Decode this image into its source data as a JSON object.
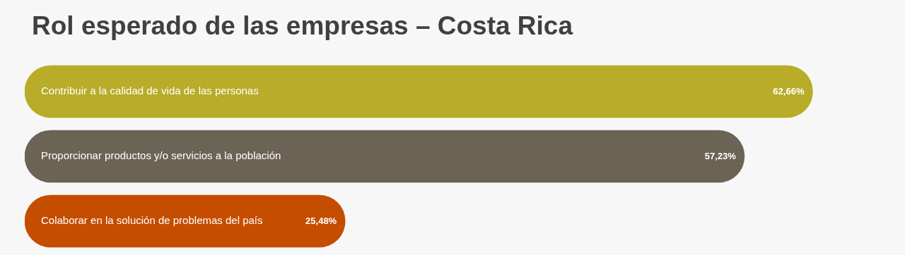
{
  "chart_data": {
    "type": "bar",
    "orientation": "horizontal",
    "title": "Rol esperado de las empresas – Costa Rica",
    "categories": [
      "Contribuir a la calidad de vida de las personas",
      "Proporcionar productos y/o servicios a la población",
      "Colaborar en la solución de problemas del país"
    ],
    "values": [
      62.66,
      57.23,
      25.48
    ],
    "colors": [
      "#b8ac28",
      "#6b6353",
      "#c44d00"
    ],
    "value_labels": [
      "62,66%",
      "57,23%",
      "25,48%"
    ]
  }
}
